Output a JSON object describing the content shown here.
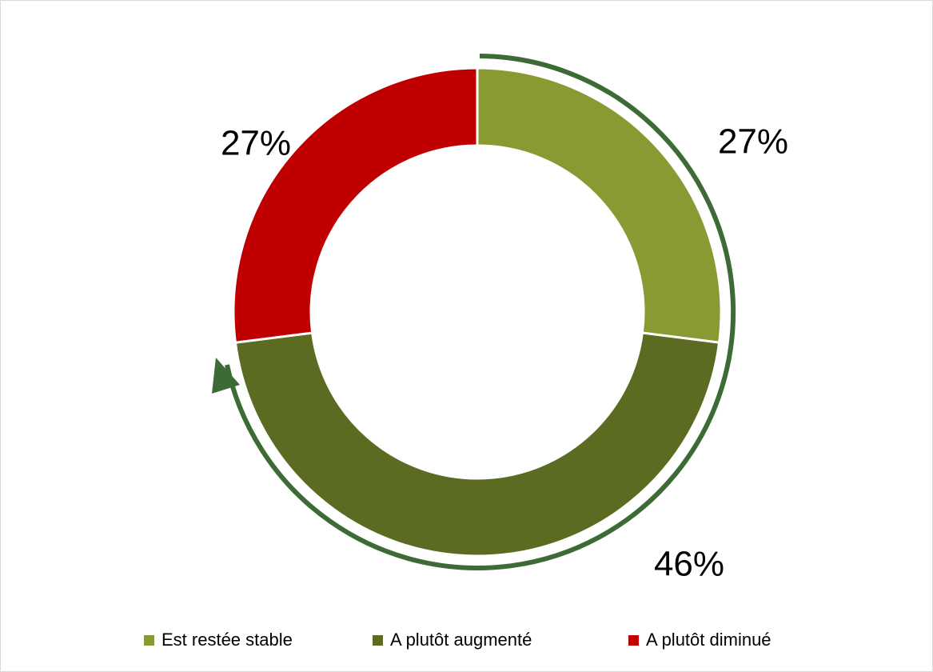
{
  "chart_data": {
    "type": "donut",
    "categories": [
      "Est restée stable",
      "A plutôt augmenté",
      "A plutôt diminué"
    ],
    "values": [
      27,
      46,
      27
    ],
    "value_labels": [
      "27%",
      "46%",
      "27%"
    ],
    "colors": [
      "#8a9a32",
      "#5c6b22",
      "#c00000"
    ],
    "legend": "bottom"
  }
}
